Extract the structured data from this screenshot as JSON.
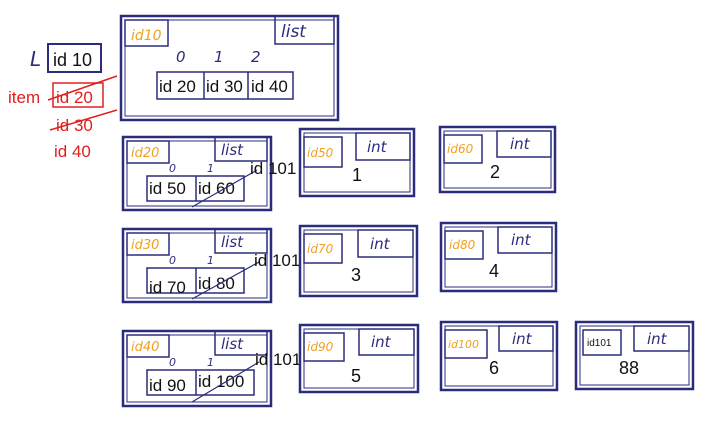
{
  "colors": {
    "ink": "#2b2d7c",
    "id_label": "#f0a020",
    "red": "#e02020",
    "text": "#111111"
  },
  "variable": {
    "name": "L",
    "ref": "id 10"
  },
  "loop_var": {
    "name": "item",
    "refs": [
      "id 20",
      "id 30",
      "id 40"
    ]
  },
  "outer_list": {
    "id": "id10",
    "type": "list",
    "indices": [
      "0",
      "1",
      "2"
    ],
    "items": [
      "id 20",
      "id 30",
      "id 40"
    ]
  },
  "inner_lists": [
    {
      "id": "id20",
      "type": "list",
      "indices": [
        "0",
        "1"
      ],
      "items": [
        "id 50",
        "id 60"
      ],
      "new_ref": "id 101"
    },
    {
      "id": "id30",
      "type": "list",
      "indices": [
        "0",
        "1"
      ],
      "items": [
        "id 70",
        "id 80"
      ],
      "new_ref": "id 101"
    },
    {
      "id": "id40",
      "type": "list",
      "indices": [
        "0",
        "1"
      ],
      "items": [
        "id 90",
        "id 100"
      ],
      "new_ref": "id 101"
    }
  ],
  "ints": [
    {
      "id": "id50",
      "type": "int",
      "value": "1"
    },
    {
      "id": "id60",
      "type": "int",
      "value": "2"
    },
    {
      "id": "id70",
      "type": "int",
      "value": "3"
    },
    {
      "id": "id80",
      "type": "int",
      "value": "4"
    },
    {
      "id": "id90",
      "type": "int",
      "value": "5"
    },
    {
      "id": "id100",
      "type": "int",
      "value": "6"
    },
    {
      "id": "id101",
      "type": "int",
      "value": "88"
    }
  ]
}
